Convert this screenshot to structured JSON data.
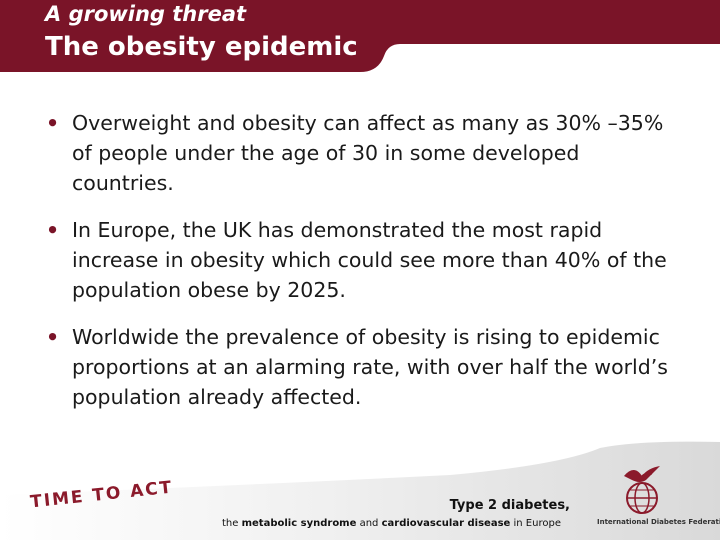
{
  "header": {
    "subtitle": "A growing threat",
    "title": "The obesity epidemic"
  },
  "bullets": [
    "Overweight and obesity can affect as many as 30% –35% of people under the age of 30 in some developed countries.",
    "In Europe, the UK has demonstrated the most rapid increase in obesity which could see more than 40% of the population obese by 2025.",
    "Worldwide the prevalence of obesity is rising to epidemic proportions at an alarming rate, with over half the world’s population already affected."
  ],
  "footer": {
    "stamp": "TIME TO ACT",
    "tagline_main": "Type 2 diabetes,",
    "tagline_the": "the",
    "tagline_metabolic": "metabolic syndrome",
    "tagline_and": "and",
    "tagline_cardio": "cardiovascular disease",
    "tagline_in": "in Europe",
    "org_name": "International Diabetes Federation"
  },
  "colors": {
    "header_bg": "#7a1428",
    "accent": "#8b1a2b"
  },
  "icons": {
    "bullet": "bullet-dot",
    "logo": "idf-bird-globe-logo"
  }
}
